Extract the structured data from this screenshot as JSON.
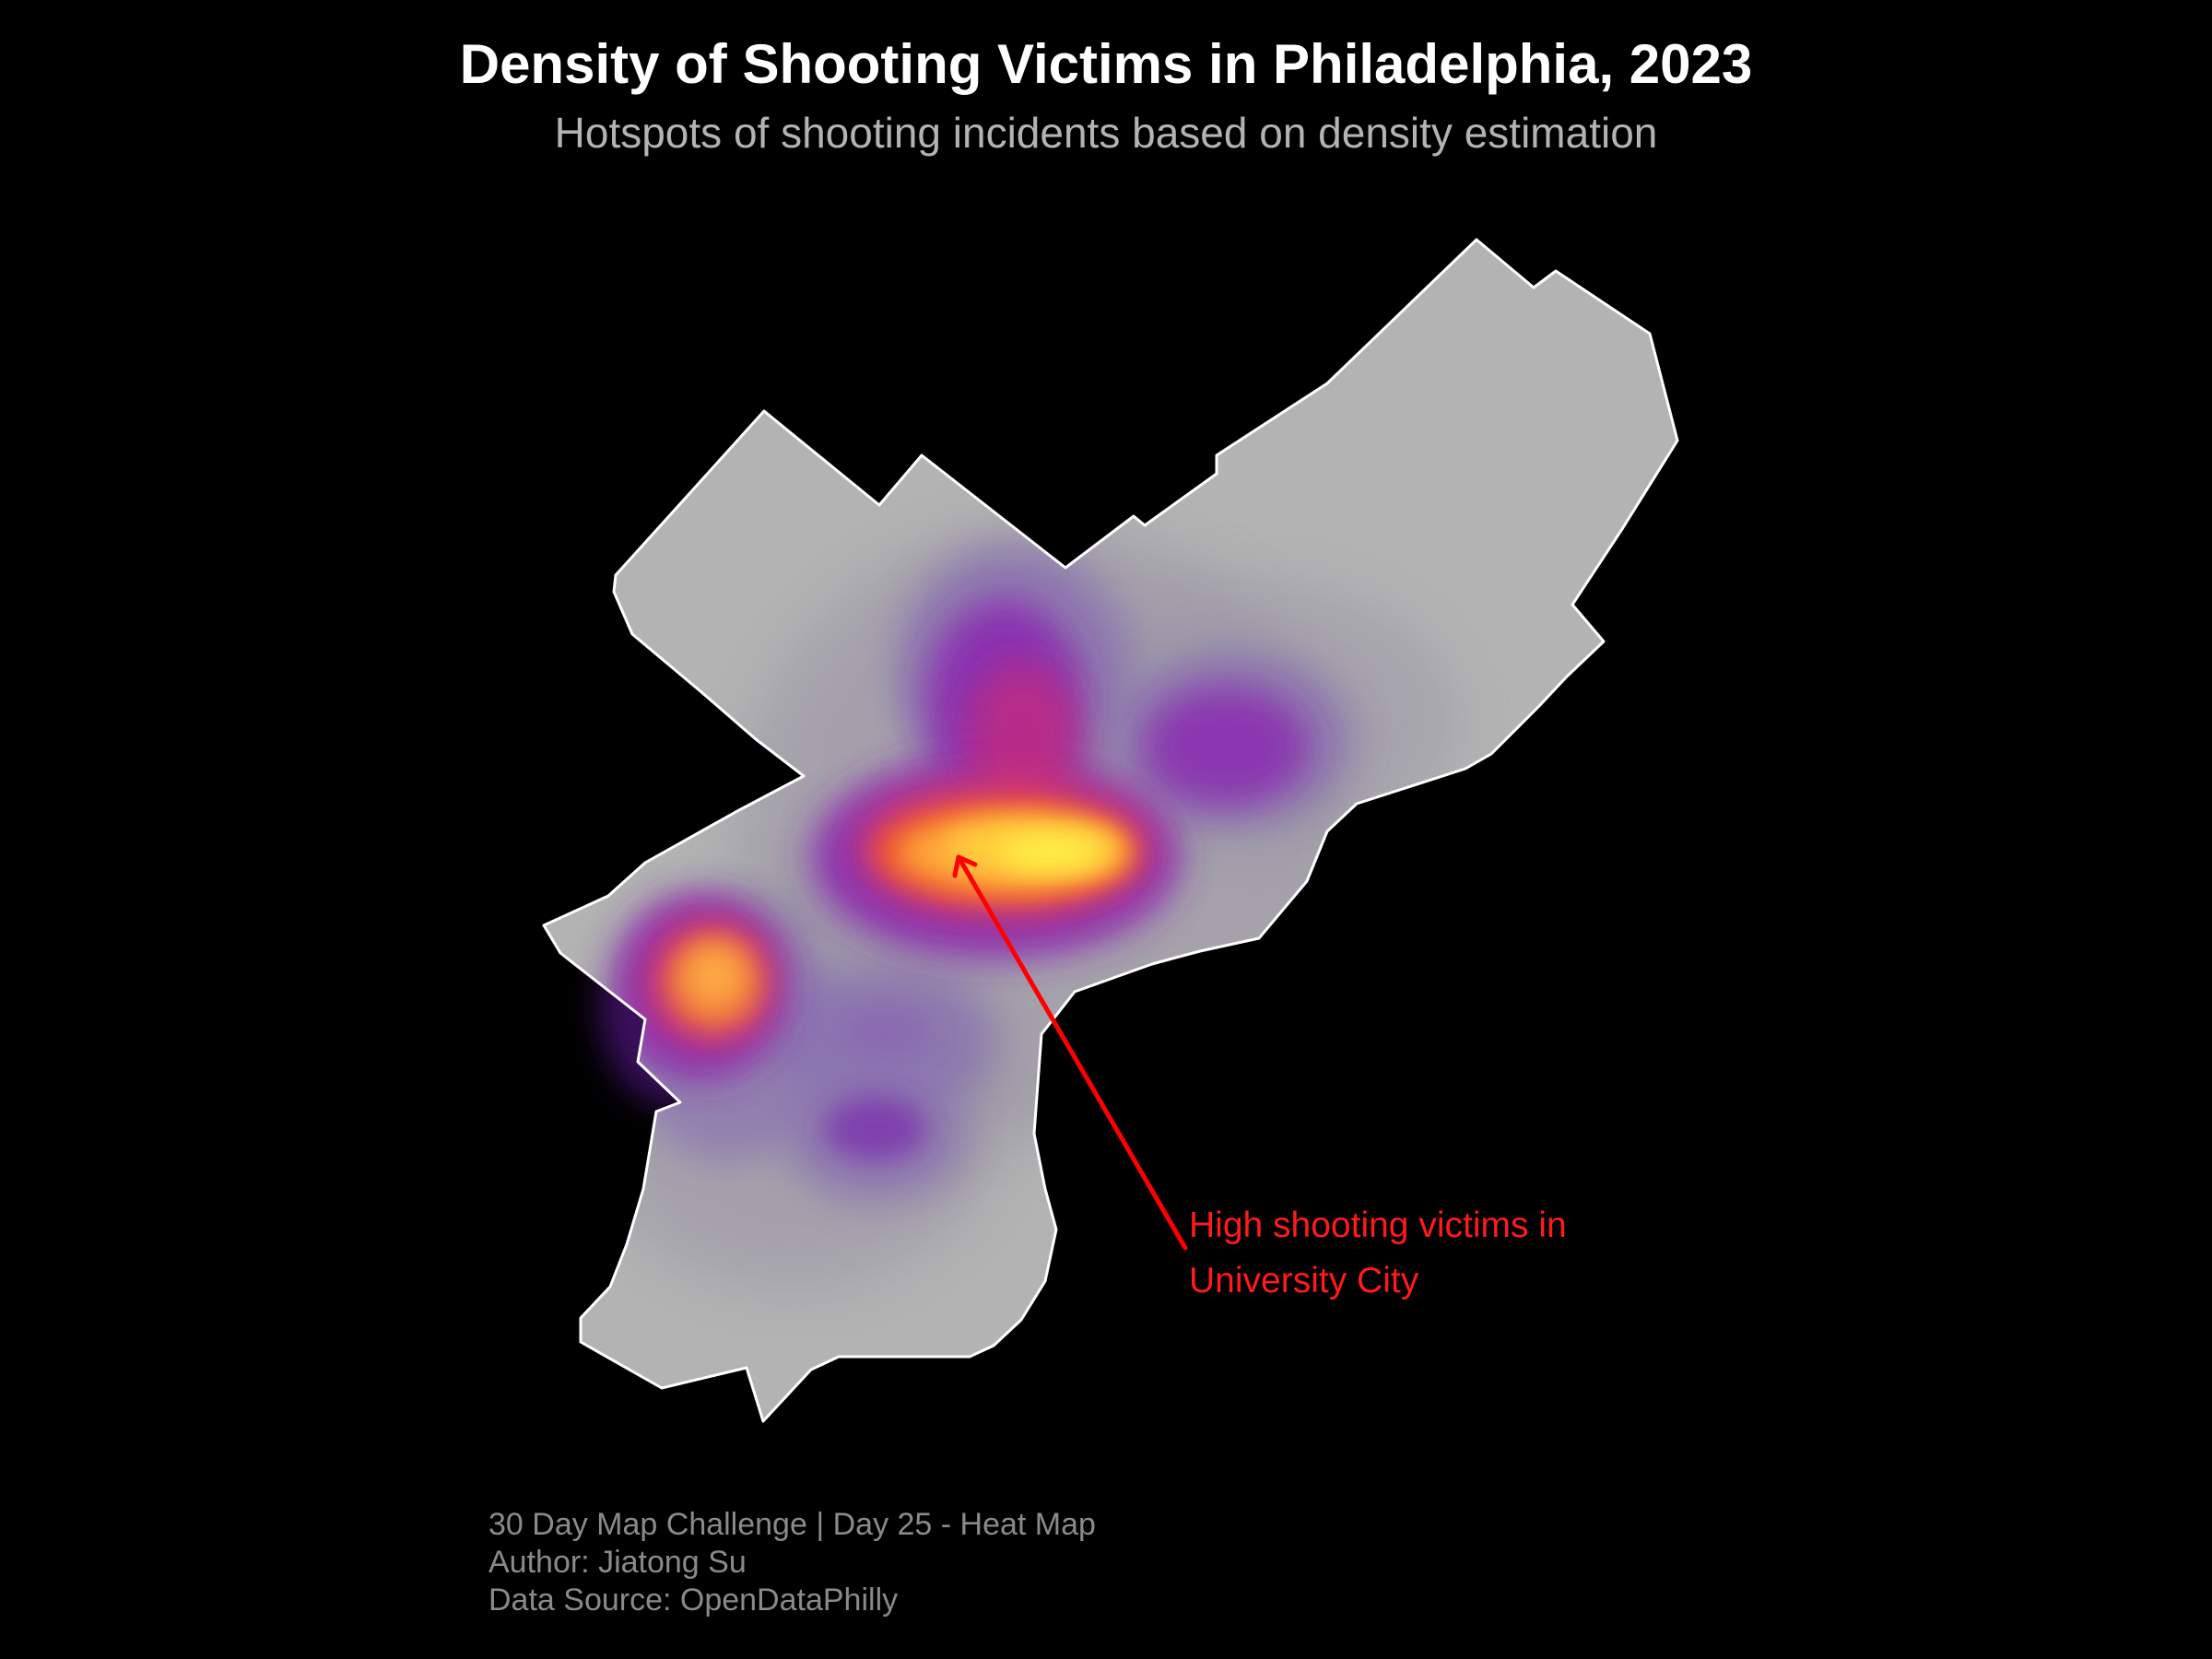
{
  "title": "Density of Shooting Victims in Philadelphia, 2023",
  "subtitle": "Hotspots of shooting incidents based on density estimation",
  "map": {
    "region": "Philadelphia",
    "land_color": "#b3b3b3",
    "boundary_color": "#ffffff",
    "background_color": "#000000",
    "density_palette": [
      "#7a6aa0",
      "#8a2bb0",
      "#c2297f",
      "#f0582c",
      "#ffcf3a",
      "#fff246"
    ]
  },
  "annotation": {
    "line1": "High shooting victims in",
    "line2": "University City",
    "color": "#ff1a1a"
  },
  "caption": {
    "line1": "30 Day Map Challenge | Day 25 - Heat Map",
    "line2": "Author: Jiatong Su",
    "line3": "Data Source: OpenDataPhilly"
  }
}
